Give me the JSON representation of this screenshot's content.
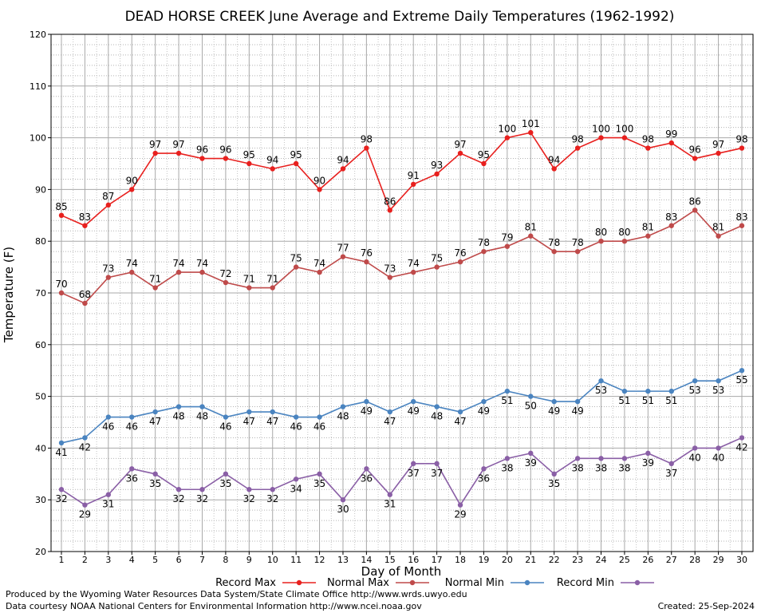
{
  "chart_data": {
    "type": "line",
    "title": "DEAD HORSE CREEK June Average and Extreme Daily Temperatures (1962-1992)",
    "xlabel": "Day of Month",
    "ylabel": "Temperature (F)",
    "ylim": [
      20,
      120
    ],
    "yticks": [
      20,
      30,
      40,
      50,
      60,
      70,
      80,
      90,
      100,
      110,
      120
    ],
    "x": [
      1,
      2,
      3,
      4,
      5,
      6,
      7,
      8,
      9,
      10,
      11,
      12,
      13,
      14,
      15,
      16,
      17,
      18,
      19,
      20,
      21,
      22,
      23,
      24,
      25,
      26,
      27,
      28,
      29,
      30
    ],
    "grid": true,
    "legend_position": "bottom",
    "series": [
      {
        "name": "Record Max",
        "color": "#e8201e",
        "label_position": "above",
        "values": [
          85,
          83,
          87,
          90,
          97,
          97,
          96,
          96,
          95,
          94,
          95,
          90,
          94,
          98,
          86,
          91,
          93,
          97,
          95,
          100,
          101,
          94,
          98,
          100,
          100,
          98,
          99,
          96,
          97,
          98
        ]
      },
      {
        "name": "Normal Max",
        "color": "#bf4a4a",
        "label_position": "above",
        "values": [
          70,
          68,
          73,
          74,
          71,
          74,
          74,
          72,
          71,
          71,
          75,
          74,
          77,
          76,
          73,
          74,
          75,
          76,
          78,
          79,
          81,
          78,
          78,
          80,
          80,
          81,
          83,
          86,
          81,
          83
        ]
      },
      {
        "name": "Normal Min",
        "color": "#4a84c0",
        "label_position": "below",
        "values": [
          41,
          42,
          46,
          46,
          47,
          48,
          48,
          46,
          47,
          47,
          46,
          46,
          48,
          49,
          47,
          49,
          48,
          47,
          49,
          51,
          50,
          49,
          49,
          53,
          51,
          51,
          51,
          53,
          53,
          55
        ]
      },
      {
        "name": "Record Min",
        "color": "#8a5fa6",
        "label_position": "below",
        "values": [
          32,
          29,
          31,
          36,
          35,
          32,
          32,
          35,
          32,
          32,
          34,
          35,
          30,
          36,
          31,
          37,
          37,
          29,
          36,
          38,
          39,
          35,
          38,
          38,
          38,
          39,
          37,
          40,
          40,
          42
        ]
      }
    ]
  },
  "footer": {
    "produced_by": "Produced by the Wyoming Water Resources Data System/State Climate Office http://www.wrds.uwyo.edu",
    "data_courtesy": "Data courtesy NOAA National Centers for Environmental Information http://www.ncei.noaa.gov",
    "created": "Created:  25-Sep-2024"
  }
}
